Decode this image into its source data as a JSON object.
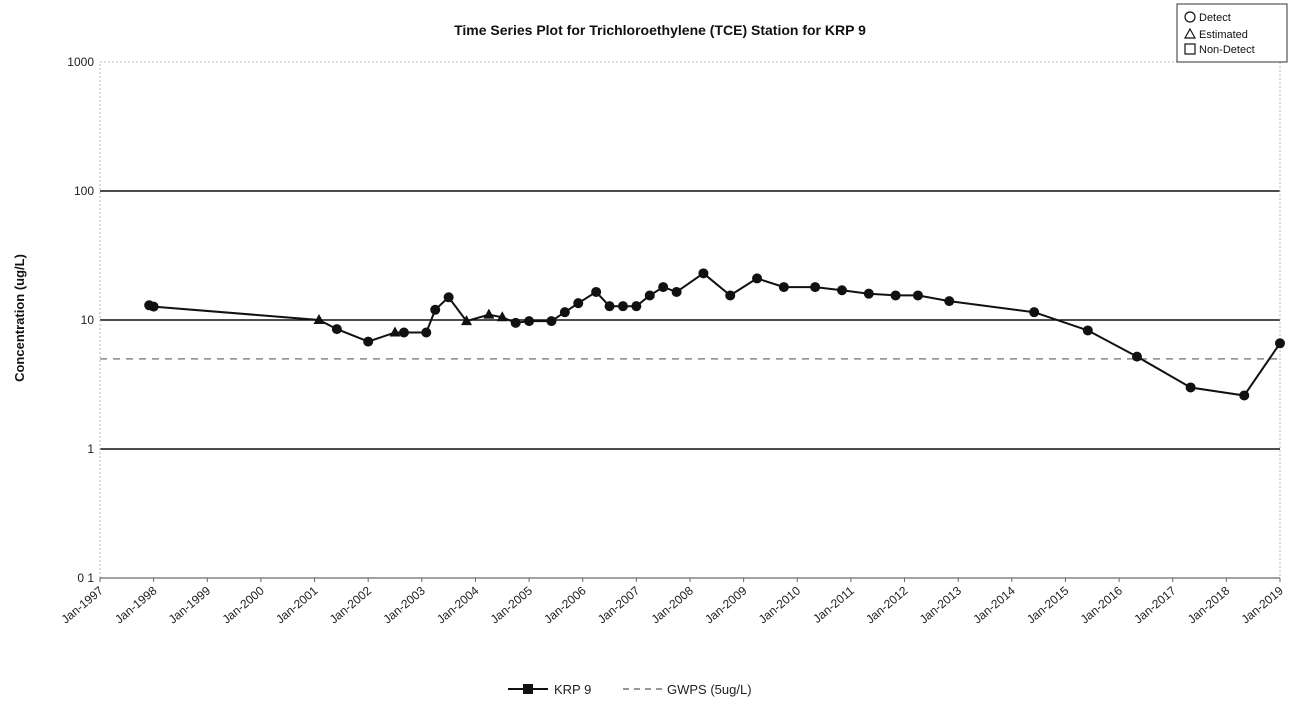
{
  "chart_data": {
    "type": "line",
    "title": "Time Series Plot for Trichloroethylene (TCE) Station for KRP  9",
    "xlabel": "",
    "ylabel": "Concentration (ug/L)",
    "y_scale": "log",
    "ylim": [
      0.1,
      1000
    ],
    "y_ticks": [
      0.1,
      1,
      10,
      100,
      1000
    ],
    "y_tick_labels": [
      "0 1",
      "1",
      "10",
      "100",
      "1000"
    ],
    "xlim": [
      "1997-01",
      "2019-01"
    ],
    "x_tick_labels": [
      "Jan-1997",
      "Jan-1998",
      "Jan-1999",
      "Jan-2000",
      "Jan-2001",
      "Jan-2002",
      "Jan-2003",
      "Jan-2004",
      "Jan-2005",
      "Jan-2006",
      "Jan-2007",
      "Jan-2008",
      "Jan-2009",
      "Jan-2010",
      "Jan-2011",
      "Jan-2012",
      "Jan-2013",
      "Jan-2014",
      "Jan-2015",
      "Jan-2016",
      "Jan-2017",
      "Jan-2018",
      "Jan-2019"
    ],
    "grid": "horizontal at decades",
    "series": [
      {
        "name": "KRP  9",
        "color": "#111111",
        "points": [
          {
            "x": "1997-12",
            "y": 13,
            "q": "detect"
          },
          {
            "x": "1998-01",
            "y": 12.7,
            "q": "detect"
          },
          {
            "x": "2001-02",
            "y": 10,
            "q": "estimated"
          },
          {
            "x": "2001-06",
            "y": 8.5,
            "q": "detect"
          },
          {
            "x": "2002-01",
            "y": 6.8,
            "q": "detect"
          },
          {
            "x": "2002-07",
            "y": 8,
            "q": "estimated"
          },
          {
            "x": "2002-09",
            "y": 8,
            "q": "detect"
          },
          {
            "x": "2003-02",
            "y": 8,
            "q": "detect"
          },
          {
            "x": "2003-04",
            "y": 12,
            "q": "detect"
          },
          {
            "x": "2003-07",
            "y": 15,
            "q": "detect"
          },
          {
            "x": "2003-11",
            "y": 9.8,
            "q": "estimated"
          },
          {
            "x": "2004-04",
            "y": 11,
            "q": "estimated"
          },
          {
            "x": "2004-07",
            "y": 10.5,
            "q": "estimated"
          },
          {
            "x": "2004-10",
            "y": 9.5,
            "q": "detect"
          },
          {
            "x": "2005-01",
            "y": 9.8,
            "q": "detect"
          },
          {
            "x": "2005-06",
            "y": 9.8,
            "q": "detect"
          },
          {
            "x": "2005-09",
            "y": 11.5,
            "q": "detect"
          },
          {
            "x": "2005-12",
            "y": 13.5,
            "q": "detect"
          },
          {
            "x": "2006-04",
            "y": 16.5,
            "q": "detect"
          },
          {
            "x": "2006-07",
            "y": 12.8,
            "q": "detect"
          },
          {
            "x": "2006-10",
            "y": 12.8,
            "q": "detect"
          },
          {
            "x": "2007-01",
            "y": 12.8,
            "q": "detect"
          },
          {
            "x": "2007-04",
            "y": 15.5,
            "q": "detect"
          },
          {
            "x": "2007-07",
            "y": 18,
            "q": "detect"
          },
          {
            "x": "2007-10",
            "y": 16.5,
            "q": "detect"
          },
          {
            "x": "2008-04",
            "y": 23,
            "q": "detect"
          },
          {
            "x": "2008-10",
            "y": 15.5,
            "q": "detect"
          },
          {
            "x": "2009-04",
            "y": 21,
            "q": "detect"
          },
          {
            "x": "2009-10",
            "y": 18,
            "q": "detect"
          },
          {
            "x": "2010-05",
            "y": 18,
            "q": "detect"
          },
          {
            "x": "2010-11",
            "y": 17,
            "q": "detect"
          },
          {
            "x": "2011-05",
            "y": 16,
            "q": "detect"
          },
          {
            "x": "2011-11",
            "y": 15.5,
            "q": "detect"
          },
          {
            "x": "2012-04",
            "y": 15.5,
            "q": "detect"
          },
          {
            "x": "2012-11",
            "y": 14,
            "q": "detect"
          },
          {
            "x": "2014-06",
            "y": 11.5,
            "q": "detect"
          },
          {
            "x": "2015-06",
            "y": 8.3,
            "q": "detect"
          },
          {
            "x": "2016-05",
            "y": 5.2,
            "q": "detect"
          },
          {
            "x": "2017-05",
            "y": 3,
            "q": "detect"
          },
          {
            "x": "2018-05",
            "y": 2.6,
            "q": "detect"
          },
          {
            "x": "2019-01",
            "y": 6.6,
            "q": "detect"
          }
        ]
      },
      {
        "name": "GWPS (5ug/L)",
        "color": "#888888",
        "style": "dashed",
        "points": [
          {
            "x": "1997-01",
            "y": 5
          },
          {
            "x": "2019-01",
            "y": 5
          }
        ]
      }
    ],
    "legend_position": "bottom-center"
  },
  "key": {
    "items": [
      {
        "shape": "circle",
        "label": "Detect"
      },
      {
        "shape": "triangle",
        "label": "Estimated"
      },
      {
        "shape": "square",
        "label": "Non-Detect"
      }
    ]
  }
}
